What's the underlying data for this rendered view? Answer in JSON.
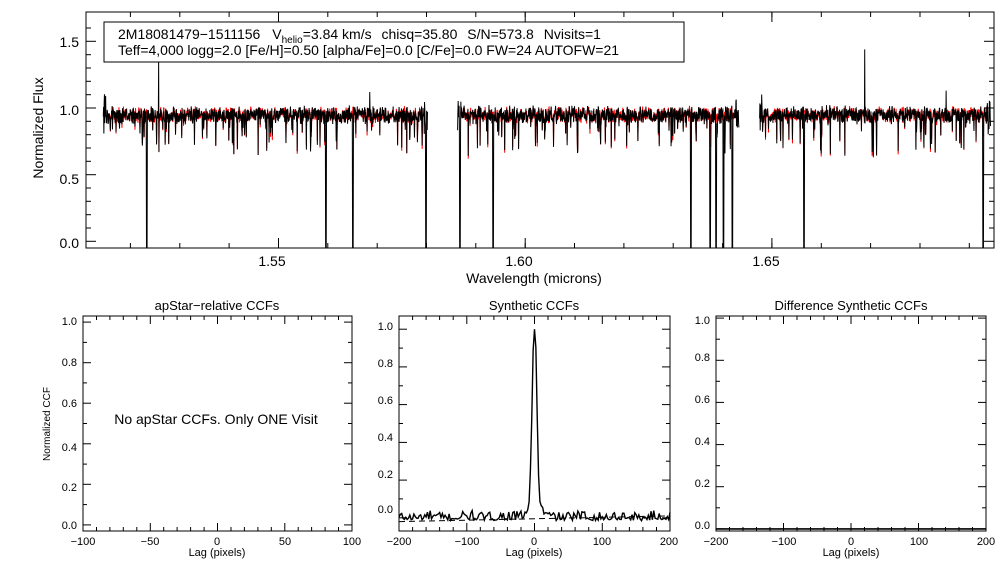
{
  "spectrum_header": {
    "star_id": "2M18081479−1511156",
    "v_label": "V",
    "v_subscript": "helio",
    "v_value": "=3.84 km/s",
    "chisq": "chisq=35.80",
    "snr": "S/N=573.8",
    "nvisits": "Nvisits=1",
    "params_line": "Teff=4,000 logg=2.0 [Fe/H]=0.50 [alpha/Fe]=0.0 [C/Fe]=0.0 FW=24 AUTOFW=21"
  },
  "colors": {
    "observed": "#000000",
    "model": "#ff0000",
    "axis": "#000000"
  },
  "chart_data": [
    {
      "type": "line",
      "name": "spectrum",
      "xlabel": "Wavelength (microns)",
      "ylabel": "Normalized Flux",
      "xlim": [
        1.511,
        1.695
      ],
      "ylim": [
        -0.05,
        1.72
      ],
      "xticks": [
        1.55,
        1.6,
        1.65
      ],
      "xtick_labels": [
        "1.55",
        "1.60",
        "1.65"
      ],
      "yticks": [
        0.0,
        0.5,
        1.0,
        1.5
      ],
      "ytick_labels": [
        "0.0",
        "0.5",
        "1.0",
        "1.5"
      ],
      "chip_ranges": [
        [
          1.5145,
          1.5802
        ],
        [
          1.5863,
          1.6433
        ],
        [
          1.6475,
          1.6943
        ]
      ],
      "continuum": 0.95,
      "strong_absorption_lines": [
        {
          "x": 1.5233,
          "y": -0.05
        },
        {
          "x": 1.5596,
          "y": -0.05
        },
        {
          "x": 1.5651,
          "y": -0.05
        },
        {
          "x": 1.5799,
          "y": -0.05
        },
        {
          "x": 1.5868,
          "y": -0.05
        },
        {
          "x": 1.5935,
          "y": -0.05
        },
        {
          "x": 1.6336,
          "y": -0.05
        },
        {
          "x": 1.6375,
          "y": -0.05
        },
        {
          "x": 1.6387,
          "y": -0.05
        },
        {
          "x": 1.6402,
          "y": -0.05
        },
        {
          "x": 1.642,
          "y": -0.05
        },
        {
          "x": 1.6565,
          "y": -0.05
        },
        {
          "x": 1.6928,
          "y": -0.05
        }
      ],
      "emission_spikes": [
        {
          "x": 1.5257,
          "y": 1.36
        },
        {
          "x": 1.6688,
          "y": 1.44
        },
        {
          "x": 1.6853,
          "y": 1.13
        },
        {
          "x": 1.5685,
          "y": 1.12
        }
      ],
      "series": [
        {
          "name": "observed spectrum",
          "color": "#000000"
        },
        {
          "name": "best-fit synthetic spectrum",
          "color": "#ff0000"
        }
      ]
    },
    {
      "type": "line",
      "name": "apstar_ccf",
      "title": "apStar−relative CCFs",
      "xlabel": "Lag (pixels)",
      "ylabel": "Normalized CCF",
      "xlim": [
        -100,
        100
      ],
      "ylim": [
        -0.03,
        1.03
      ],
      "xticks": [
        -100,
        -50,
        0,
        50,
        100
      ],
      "xtick_labels": [
        "−100",
        "−50",
        "0",
        "50",
        "100"
      ],
      "yticks": [
        0.0,
        0.2,
        0.4,
        0.6,
        0.8,
        1.0
      ],
      "ytick_labels": [
        "0.0",
        "0.2",
        "0.4",
        "0.6",
        "0.8",
        "1.0"
      ],
      "annotation": "No apStar CCFs.  Only ONE Visit",
      "series": []
    },
    {
      "type": "line",
      "name": "synthetic_ccf",
      "title": "Synthetic CCFs",
      "xlabel": "Lag (pixels)",
      "xlim": [
        -200,
        200
      ],
      "ylim": [
        -0.07,
        1.07
      ],
      "xticks": [
        -200,
        -100,
        0,
        100,
        200
      ],
      "xtick_labels": [
        "−200",
        "−100",
        "0",
        "100",
        "200"
      ],
      "yticks": [
        0.0,
        0.2,
        0.4,
        0.6,
        0.8,
        1.0
      ],
      "ytick_labels": [
        "0.0",
        "0.2",
        "0.4",
        "0.6",
        "0.8",
        "1.0"
      ],
      "peak": {
        "x": 0,
        "y": 1.0
      },
      "series": [
        {
          "name": "CCF",
          "style": "solid",
          "color": "#000000"
        },
        {
          "name": "baseline fit",
          "style": "dashed",
          "color": "#000000",
          "x": [
            -200,
            200
          ],
          "y": [
            -0.02,
            0.01
          ]
        }
      ]
    },
    {
      "type": "line",
      "name": "difference_ccf",
      "title": "Difference Synthetic CCFs",
      "xlabel": "Lag (pixels)",
      "xlim": [
        -200,
        200
      ],
      "ylim": [
        -0.01,
        1.01
      ],
      "xticks": [
        -200,
        -100,
        0,
        100,
        200
      ],
      "xtick_labels": [
        "−200",
        "−100",
        "0",
        "100",
        "200"
      ],
      "yticks": [
        0.0,
        0.2,
        0.4,
        0.6,
        0.8,
        1.0
      ],
      "ytick_labels": [
        "0.0",
        "0.2",
        "0.4",
        "0.6",
        "0.8",
        "1.0"
      ],
      "series": [
        {
          "name": "difference CCF",
          "color": "#000000",
          "x": [
            -200,
            200
          ],
          "y": [
            0.0,
            0.0
          ]
        }
      ]
    }
  ]
}
